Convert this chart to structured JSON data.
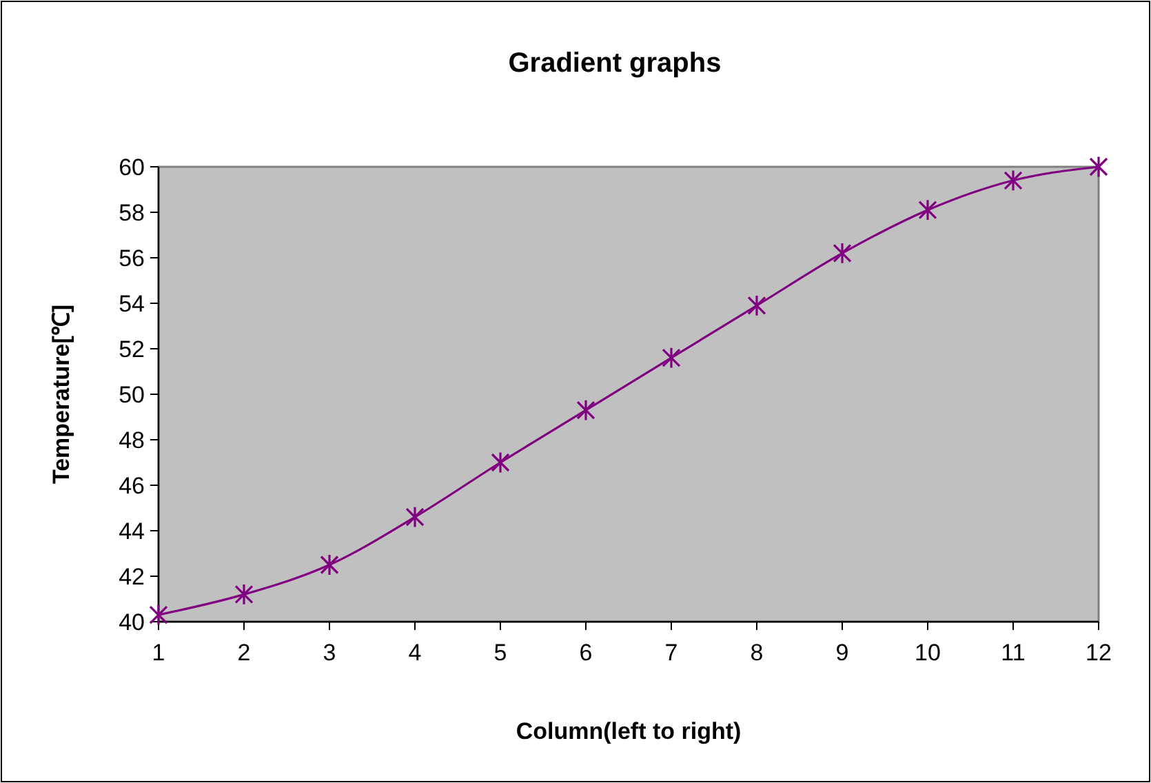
{
  "chart_data": {
    "type": "line",
    "title": "Gradient graphs",
    "xlabel": "Column(left to right)",
    "ylabel": "Temperature[℃]",
    "x": [
      1,
      2,
      3,
      4,
      5,
      6,
      7,
      8,
      9,
      10,
      11,
      12
    ],
    "series": [
      {
        "color": "#800080",
        "values": [
          40.3,
          41.2,
          42.5,
          44.6,
          47.0,
          49.3,
          51.6,
          53.9,
          56.2,
          58.1,
          59.4,
          60.0
        ]
      }
    ],
    "xlim": [
      1,
      12
    ],
    "xticks": [
      1,
      2,
      3,
      4,
      5,
      6,
      7,
      8,
      9,
      10,
      11,
      12
    ],
    "ylim": [
      40,
      60
    ],
    "yticks": [
      40,
      42,
      44,
      46,
      48,
      50,
      52,
      54,
      56,
      58,
      60
    ],
    "grid": false,
    "marker": "cross",
    "line_style": "solid"
  }
}
